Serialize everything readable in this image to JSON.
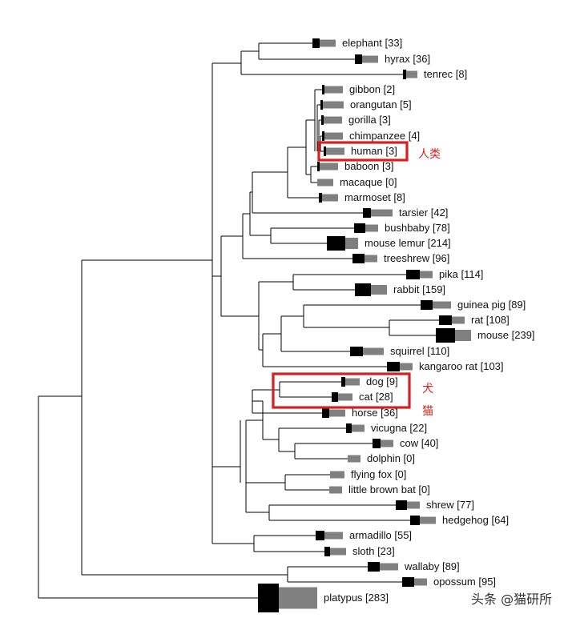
{
  "colors": {
    "black_bar": "#000000",
    "gray_bar": "#808080",
    "highlight": "#d42020",
    "branch": "#000000"
  },
  "taxa": [
    {
      "name": "elephant",
      "count": "[33]",
      "black": 33,
      "gray": 60
    },
    {
      "name": "hyrax",
      "count": "[36]",
      "black": 36,
      "gray": 60
    },
    {
      "name": "tenrec",
      "count": "[8]",
      "black": 8,
      "gray": 30
    },
    {
      "name": "gibbon",
      "count": "[2]",
      "black": 2,
      "gray": 80
    },
    {
      "name": "orangutan",
      "count": "[5]",
      "black": 5,
      "gray": 100
    },
    {
      "name": "gorilla",
      "count": "[3]",
      "black": 3,
      "gray": 80
    },
    {
      "name": "chimpanzee",
      "count": "[4]",
      "black": 4,
      "gray": 80
    },
    {
      "name": "human",
      "count": "[3]",
      "black": 3,
      "gray": 80
    },
    {
      "name": "baboon",
      "count": "[3]",
      "black": 3,
      "gray": 80
    },
    {
      "name": "macaque",
      "count": "[0]",
      "black": 0,
      "gray": 60
    },
    {
      "name": "marmoset",
      "count": "[8]",
      "black": 8,
      "gray": 60
    },
    {
      "name": "tarsier",
      "count": "[42]",
      "black": 42,
      "gray": 110
    },
    {
      "name": "bushbaby",
      "count": "[78]",
      "black": 78,
      "gray": 40
    },
    {
      "name": "mouse lemur",
      "count": "[214]",
      "black": 214,
      "gray": 40
    },
    {
      "name": "treeshrew",
      "count": "[96]",
      "black": 96,
      "gray": 40
    },
    {
      "name": "pika",
      "count": "[114]",
      "black": 114,
      "gray": 40
    },
    {
      "name": "rabbit",
      "count": "[159]",
      "black": 159,
      "gray": 60
    },
    {
      "name": "guinea pig",
      "count": "[89]",
      "black": 89,
      "gray": 80
    },
    {
      "name": "rat",
      "count": "[108]",
      "black": 108,
      "gray": 40
    },
    {
      "name": "mouse",
      "count": "[239]",
      "black": 239,
      "gray": 60
    },
    {
      "name": "squirrel",
      "count": "[110]",
      "black": 110,
      "gray": 100
    },
    {
      "name": "kangaroo rat",
      "count": "[103]",
      "black": 103,
      "gray": 40
    },
    {
      "name": "dog",
      "count": "[9]",
      "black": 9,
      "gray": 50
    },
    {
      "name": "cat",
      "count": "[28]",
      "black": 28,
      "gray": 50
    },
    {
      "name": "horse",
      "count": "[36]",
      "black": 36,
      "gray": 60
    },
    {
      "name": "vicugna",
      "count": "[22]",
      "black": 22,
      "gray": 40
    },
    {
      "name": "cow",
      "count": "[40]",
      "black": 40,
      "gray": 40
    },
    {
      "name": "dolphin",
      "count": "[0]",
      "black": 0,
      "gray": 40
    },
    {
      "name": "flying fox",
      "count": "[0]",
      "black": 0,
      "gray": 50
    },
    {
      "name": "little brown bat",
      "count": "[0]",
      "black": 0,
      "gray": 40
    },
    {
      "name": "shrew",
      "count": "[77]",
      "black": 77,
      "gray": 40
    },
    {
      "name": "hedgehog",
      "count": "[64]",
      "black": 64,
      "gray": 60
    },
    {
      "name": "armadillo",
      "count": "[55]",
      "black": 55,
      "gray": 80
    },
    {
      "name": "sloth",
      "count": "[23]",
      "black": 23,
      "gray": 60
    },
    {
      "name": "wallaby",
      "count": "[89]",
      "black": 89,
      "gray": 80
    },
    {
      "name": "opossum",
      "count": "[95]",
      "black": 95,
      "gray": 40
    },
    {
      "name": "platypus",
      "count": "[283]",
      "black": 283,
      "gray": 340
    }
  ],
  "annotations": {
    "human_label": "人类",
    "dog_label": "犬",
    "cat_label": "猫"
  },
  "watermark": "头条 @猫研所"
}
